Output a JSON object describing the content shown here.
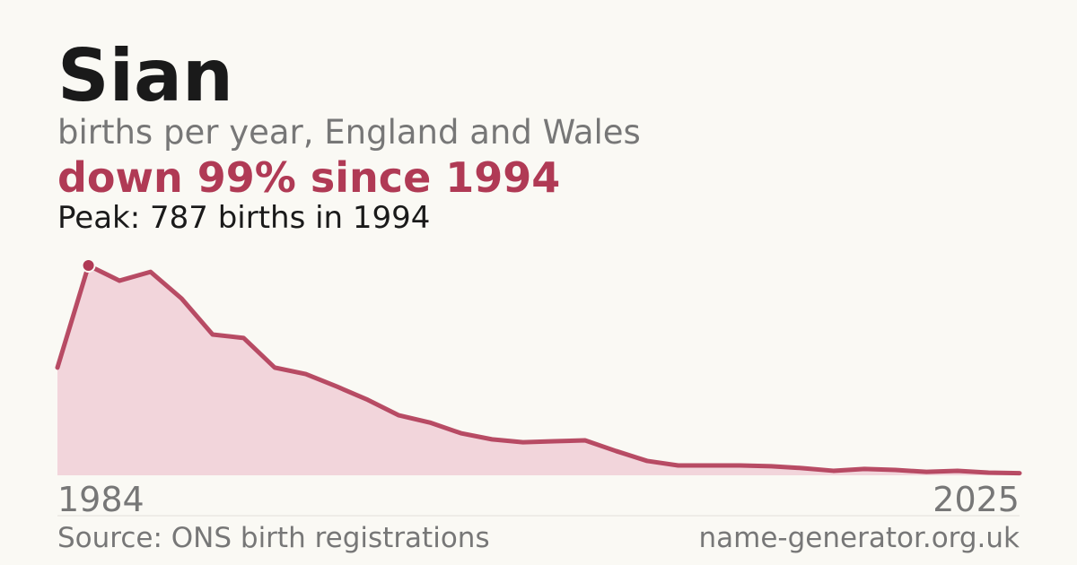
{
  "chart_data": {
    "type": "area",
    "title": "Sian",
    "subtitle": "births per year, England and Wales",
    "headline": "down 99% since 1994",
    "peak_note": "Peak: 787 births in 1994",
    "x_start_label": "1984",
    "x_end_label": "2025",
    "source": "Source: ONS birth registrations",
    "site": "name-generator.org.uk",
    "categories": [
      null,
      null,
      null,
      null,
      null,
      null,
      null,
      null,
      null,
      null,
      null,
      null,
      null,
      null,
      null,
      null,
      null,
      null,
      null,
      null,
      null,
      null,
      null,
      null,
      null,
      null,
      null,
      null,
      null,
      null,
      null,
      null
    ],
    "values": [
      404,
      787,
      730,
      763,
      663,
      528,
      515,
      404,
      380,
      333,
      283,
      225,
      198,
      158,
      135,
      124,
      128,
      131,
      91,
      54,
      37,
      37,
      37,
      34,
      27,
      17,
      24,
      20,
      13,
      17,
      10,
      8
    ],
    "color": "#b03a55",
    "fill_color": "#f2d5db",
    "peak_index": 1,
    "ylim": [
      0,
      787
    ]
  }
}
